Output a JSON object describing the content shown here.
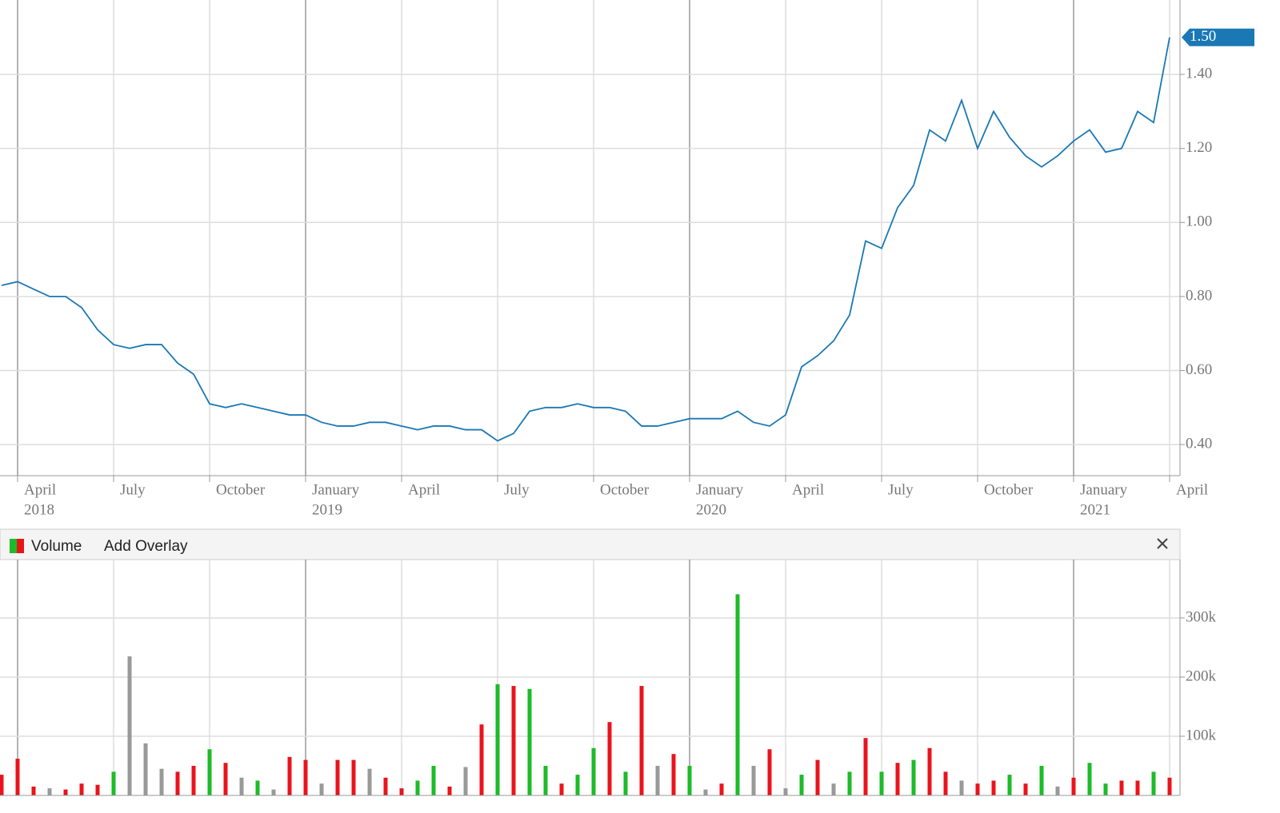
{
  "chart_data": [
    {
      "type": "line",
      "categories": [
        null,
        "April",
        null,
        null,
        null,
        null,
        null,
        "July",
        null,
        null,
        null,
        null,
        null,
        "October",
        null,
        null,
        null,
        null,
        null,
        "January",
        null,
        null,
        null,
        null,
        null,
        "April",
        null,
        null,
        null,
        null,
        null,
        "July",
        null,
        null,
        null,
        null,
        null,
        "October",
        null,
        null,
        null,
        null,
        null,
        "January",
        null,
        null,
        null,
        null,
        null,
        "April",
        null,
        null,
        null,
        null,
        null,
        "July",
        null,
        null,
        null,
        null,
        null,
        "October",
        null,
        null,
        null,
        null,
        null,
        "January",
        null,
        null,
        null,
        null,
        null,
        "April"
      ],
      "years": [
        null,
        "2018",
        null,
        null,
        null,
        null,
        null,
        null,
        null,
        null,
        null,
        null,
        null,
        null,
        null,
        null,
        null,
        null,
        null,
        "2019",
        null,
        null,
        null,
        null,
        null,
        null,
        null,
        null,
        null,
        null,
        null,
        null,
        null,
        null,
        null,
        null,
        null,
        null,
        null,
        null,
        null,
        null,
        null,
        "2020",
        null,
        null,
        null,
        null,
        null,
        null,
        null,
        null,
        null,
        null,
        null,
        null,
        null,
        null,
        null,
        null,
        null,
        null,
        null,
        null,
        null,
        null,
        null,
        "2021",
        null,
        null,
        null,
        null,
        null,
        null
      ],
      "series": [
        {
          "color": "#1a78b4",
          "values": [
            0.83,
            0.84,
            0.82,
            0.8,
            0.8,
            0.77,
            0.71,
            0.67,
            0.66,
            0.67,
            0.67,
            0.62,
            0.59,
            0.51,
            0.5,
            0.51,
            0.5,
            0.49,
            0.48,
            0.48,
            0.46,
            0.45,
            0.45,
            0.46,
            0.46,
            0.45,
            0.44,
            0.45,
            0.45,
            0.44,
            0.44,
            0.41,
            0.43,
            0.49,
            0.5,
            0.5,
            0.51,
            0.5,
            0.5,
            0.49,
            0.45,
            0.45,
            0.46,
            0.47,
            0.47,
            0.47,
            0.49,
            0.46,
            0.45,
            0.48,
            0.61,
            0.64,
            0.68,
            0.75,
            0.95,
            0.93,
            1.04,
            1.1,
            1.25,
            1.22,
            1.33,
            1.2,
            1.3,
            1.23,
            1.18,
            1.15,
            1.18,
            1.22,
            1.25,
            1.19,
            1.2,
            1.3,
            1.27,
            1.5
          ],
          "value_labels": [
            null,
            null,
            null,
            null,
            null,
            null,
            null,
            null,
            null,
            null,
            null,
            null,
            null,
            null,
            null,
            null,
            null,
            null,
            null,
            null,
            null,
            null,
            null,
            null,
            null,
            null,
            null,
            null,
            null,
            null,
            null,
            null,
            null,
            null,
            null,
            null,
            null,
            null,
            null,
            null,
            null,
            null,
            null,
            null,
            null,
            null,
            null,
            null,
            null,
            null,
            null,
            null,
            null,
            null,
            null,
            null,
            null,
            null,
            null,
            null,
            null,
            null,
            null,
            null,
            null,
            null,
            null,
            null,
            null,
            null,
            null,
            null,
            null,
            "1.50"
          ]
        }
      ],
      "ylim": [
        0.316,
        1.601
      ],
      "yticks": [
        {
          "value": 0.4,
          "label": "0.40"
        },
        {
          "value": 0.6,
          "label": "0.60"
        },
        {
          "value": 0.8,
          "label": "0.80"
        },
        {
          "value": 1.0,
          "label": "1.00"
        },
        {
          "value": 1.2,
          "label": "1.20"
        },
        {
          "value": 1.4,
          "label": "1.40"
        }
      ],
      "grid": true
    },
    {
      "type": "bar",
      "legend": "Volume",
      "overlay_button": "Add Overlay",
      "values": [
        35000,
        62000,
        15000,
        12000,
        10000,
        20000,
        18000,
        40000,
        235000,
        88000,
        45000,
        40000,
        50000,
        78000,
        55000,
        30000,
        25000,
        10000,
        65000,
        60000,
        20000,
        60000,
        60000,
        45000,
        30000,
        12000,
        25000,
        50000,
        15000,
        48000,
        120000,
        188000,
        185000,
        180000,
        50000,
        20000,
        35000,
        80000,
        124000,
        40000,
        185000,
        50000,
        70000,
        50000,
        10000,
        20000,
        340000,
        50000,
        78000,
        12000,
        35000,
        60000,
        20000,
        40000,
        97000,
        40000,
        55000,
        60000,
        80000,
        40000,
        25000,
        20000,
        25000,
        35000,
        20000,
        50000,
        15000,
        30000,
        55000,
        20000,
        25000,
        25000,
        40000,
        30000
      ],
      "colors": [
        "#e8141b",
        "#e8141b",
        "#e8141b",
        "#999999",
        "#e8141b",
        "#e8141b",
        "#e8141b",
        "#1dbb2a",
        "#999999",
        "#999999",
        "#999999",
        "#e8141b",
        "#e8141b",
        "#1dbb2a",
        "#e8141b",
        "#999999",
        "#1dbb2a",
        "#999999",
        "#e8141b",
        "#e8141b",
        "#999999",
        "#e8141b",
        "#e8141b",
        "#999999",
        "#e8141b",
        "#e8141b",
        "#1dbb2a",
        "#1dbb2a",
        "#e8141b",
        "#999999",
        "#e8141b",
        "#1dbb2a",
        "#e8141b",
        "#1dbb2a",
        "#1dbb2a",
        "#e8141b",
        "#1dbb2a",
        "#1dbb2a",
        "#e8141b",
        "#1dbb2a",
        "#e8141b",
        "#999999",
        "#e8141b",
        "#1dbb2a",
        "#999999",
        "#e8141b",
        "#1dbb2a",
        "#999999",
        "#e8141b",
        "#999999",
        "#1dbb2a",
        "#e8141b",
        "#999999",
        "#1dbb2a",
        "#e8141b",
        "#1dbb2a",
        "#e8141b",
        "#1dbb2a",
        "#e8141b",
        "#e8141b",
        "#999999",
        "#e8141b",
        "#e8141b",
        "#1dbb2a",
        "#e8141b",
        "#1dbb2a",
        "#999999",
        "#e8141b",
        "#1dbb2a",
        "#1dbb2a",
        "#e8141b",
        "#e8141b",
        "#1dbb2a",
        "#e8141b"
      ],
      "ylim": [
        0,
        398600
      ],
      "yticks": [
        {
          "value": 100000,
          "label": "100k"
        },
        {
          "value": 200000,
          "label": "200k"
        },
        {
          "value": 300000,
          "label": "300k"
        }
      ],
      "grid": true
    }
  ]
}
